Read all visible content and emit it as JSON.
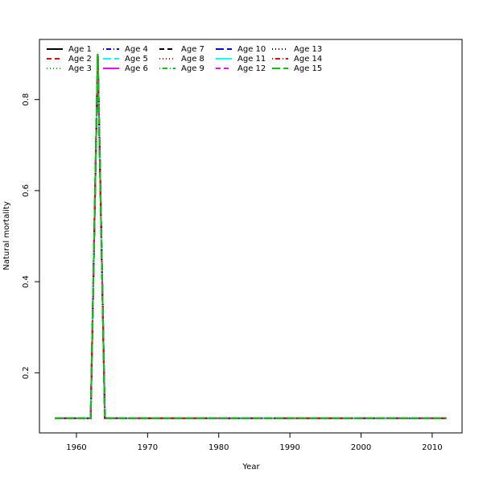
{
  "chart_data": {
    "type": "line",
    "x_label": "Year",
    "y_label": "Natural mortality",
    "x": [
      1957,
      1958,
      1959,
      1960,
      1961,
      1962,
      1963,
      1964,
      1965,
      1966,
      1967,
      1968,
      1969,
      1970,
      1971,
      1972,
      1973,
      1974,
      1975,
      1976,
      1977,
      1978,
      1979,
      1980,
      1981,
      1982,
      1983,
      1984,
      1985,
      1986,
      1987,
      1988,
      1989,
      1990,
      1991,
      1992,
      1993,
      1994,
      1995,
      1996,
      1997,
      1998,
      1999,
      2000,
      2001,
      2002,
      2003,
      2004,
      2005,
      2006,
      2007,
      2008,
      2009,
      2010,
      2011,
      2012
    ],
    "xlim": [
      1954.8,
      2014.2
    ],
    "xticks": [
      1960,
      1970,
      1980,
      1990,
      2000,
      2010
    ],
    "ylim": [
      0.068,
      0.932
    ],
    "yticks": [
      0.2,
      0.4,
      0.6,
      0.8
    ],
    "legend": "top-left",
    "series": [
      {
        "name": "Age 1",
        "color": "#000000",
        "dash": "solid",
        "values": [
          0.1,
          0.1,
          0.1,
          0.1,
          0.1,
          0.1,
          0.9,
          0.1,
          0.1,
          0.1,
          0.1,
          0.1,
          0.1,
          0.1,
          0.1,
          0.1,
          0.1,
          0.1,
          0.1,
          0.1,
          0.1,
          0.1,
          0.1,
          0.1,
          0.1,
          0.1,
          0.1,
          0.1,
          0.1,
          0.1,
          0.1,
          0.1,
          0.1,
          0.1,
          0.1,
          0.1,
          0.1,
          0.1,
          0.1,
          0.1,
          0.1,
          0.1,
          0.1,
          0.1,
          0.1,
          0.1,
          0.1,
          0.1,
          0.1,
          0.1,
          0.1,
          0.1,
          0.1,
          0.1,
          0.1,
          0.1
        ]
      },
      {
        "name": "Age 2",
        "color": "#ff0000",
        "dash": "dashed",
        "values": [
          0.1,
          0.1,
          0.1,
          0.1,
          0.1,
          0.1,
          0.9,
          0.1,
          0.1,
          0.1,
          0.1,
          0.1,
          0.1,
          0.1,
          0.1,
          0.1,
          0.1,
          0.1,
          0.1,
          0.1,
          0.1,
          0.1,
          0.1,
          0.1,
          0.1,
          0.1,
          0.1,
          0.1,
          0.1,
          0.1,
          0.1,
          0.1,
          0.1,
          0.1,
          0.1,
          0.1,
          0.1,
          0.1,
          0.1,
          0.1,
          0.1,
          0.1,
          0.1,
          0.1,
          0.1,
          0.1,
          0.1,
          0.1,
          0.1,
          0.1,
          0.1,
          0.1,
          0.1,
          0.1,
          0.1,
          0.1
        ]
      },
      {
        "name": "Age 3",
        "color": "#00cd00",
        "dash": "dotted",
        "values": [
          0.1,
          0.1,
          0.1,
          0.1,
          0.1,
          0.1,
          0.9,
          0.1,
          0.1,
          0.1,
          0.1,
          0.1,
          0.1,
          0.1,
          0.1,
          0.1,
          0.1,
          0.1,
          0.1,
          0.1,
          0.1,
          0.1,
          0.1,
          0.1,
          0.1,
          0.1,
          0.1,
          0.1,
          0.1,
          0.1,
          0.1,
          0.1,
          0.1,
          0.1,
          0.1,
          0.1,
          0.1,
          0.1,
          0.1,
          0.1,
          0.1,
          0.1,
          0.1,
          0.1,
          0.1,
          0.1,
          0.1,
          0.1,
          0.1,
          0.1,
          0.1,
          0.1,
          0.1,
          0.1,
          0.1,
          0.1
        ]
      },
      {
        "name": "Age 4",
        "color": "#0000ff",
        "dash": "dotdash",
        "values": [
          0.1,
          0.1,
          0.1,
          0.1,
          0.1,
          0.1,
          0.9,
          0.1,
          0.1,
          0.1,
          0.1,
          0.1,
          0.1,
          0.1,
          0.1,
          0.1,
          0.1,
          0.1,
          0.1,
          0.1,
          0.1,
          0.1,
          0.1,
          0.1,
          0.1,
          0.1,
          0.1,
          0.1,
          0.1,
          0.1,
          0.1,
          0.1,
          0.1,
          0.1,
          0.1,
          0.1,
          0.1,
          0.1,
          0.1,
          0.1,
          0.1,
          0.1,
          0.1,
          0.1,
          0.1,
          0.1,
          0.1,
          0.1,
          0.1,
          0.1,
          0.1,
          0.1,
          0.1,
          0.1,
          0.1,
          0.1
        ]
      },
      {
        "name": "Age 5",
        "color": "#00ffff",
        "dash": "longdash",
        "values": [
          0.1,
          0.1,
          0.1,
          0.1,
          0.1,
          0.1,
          0.9,
          0.1,
          0.1,
          0.1,
          0.1,
          0.1,
          0.1,
          0.1,
          0.1,
          0.1,
          0.1,
          0.1,
          0.1,
          0.1,
          0.1,
          0.1,
          0.1,
          0.1,
          0.1,
          0.1,
          0.1,
          0.1,
          0.1,
          0.1,
          0.1,
          0.1,
          0.1,
          0.1,
          0.1,
          0.1,
          0.1,
          0.1,
          0.1,
          0.1,
          0.1,
          0.1,
          0.1,
          0.1,
          0.1,
          0.1,
          0.1,
          0.1,
          0.1,
          0.1,
          0.1,
          0.1,
          0.1,
          0.1,
          0.1,
          0.1
        ]
      },
      {
        "name": "Age 6",
        "color": "#ff00ff",
        "dash": "solid",
        "values": [
          0.1,
          0.1,
          0.1,
          0.1,
          0.1,
          0.1,
          0.9,
          0.1,
          0.1,
          0.1,
          0.1,
          0.1,
          0.1,
          0.1,
          0.1,
          0.1,
          0.1,
          0.1,
          0.1,
          0.1,
          0.1,
          0.1,
          0.1,
          0.1,
          0.1,
          0.1,
          0.1,
          0.1,
          0.1,
          0.1,
          0.1,
          0.1,
          0.1,
          0.1,
          0.1,
          0.1,
          0.1,
          0.1,
          0.1,
          0.1,
          0.1,
          0.1,
          0.1,
          0.1,
          0.1,
          0.1,
          0.1,
          0.1,
          0.1,
          0.1,
          0.1,
          0.1,
          0.1,
          0.1,
          0.1,
          0.1
        ]
      },
      {
        "name": "Age 7",
        "color": "#000000",
        "dash": "dashed",
        "values": [
          0.1,
          0.1,
          0.1,
          0.1,
          0.1,
          0.1,
          0.9,
          0.1,
          0.1,
          0.1,
          0.1,
          0.1,
          0.1,
          0.1,
          0.1,
          0.1,
          0.1,
          0.1,
          0.1,
          0.1,
          0.1,
          0.1,
          0.1,
          0.1,
          0.1,
          0.1,
          0.1,
          0.1,
          0.1,
          0.1,
          0.1,
          0.1,
          0.1,
          0.1,
          0.1,
          0.1,
          0.1,
          0.1,
          0.1,
          0.1,
          0.1,
          0.1,
          0.1,
          0.1,
          0.1,
          0.1,
          0.1,
          0.1,
          0.1,
          0.1,
          0.1,
          0.1,
          0.1,
          0.1,
          0.1,
          0.1
        ]
      },
      {
        "name": "Age 8",
        "color": "#ff0000",
        "dash": "dotted",
        "values": [
          0.1,
          0.1,
          0.1,
          0.1,
          0.1,
          0.1,
          0.9,
          0.1,
          0.1,
          0.1,
          0.1,
          0.1,
          0.1,
          0.1,
          0.1,
          0.1,
          0.1,
          0.1,
          0.1,
          0.1,
          0.1,
          0.1,
          0.1,
          0.1,
          0.1,
          0.1,
          0.1,
          0.1,
          0.1,
          0.1,
          0.1,
          0.1,
          0.1,
          0.1,
          0.1,
          0.1,
          0.1,
          0.1,
          0.1,
          0.1,
          0.1,
          0.1,
          0.1,
          0.1,
          0.1,
          0.1,
          0.1,
          0.1,
          0.1,
          0.1,
          0.1,
          0.1,
          0.1,
          0.1,
          0.1,
          0.1
        ]
      },
      {
        "name": "Age 9",
        "color": "#00cd00",
        "dash": "dotdash",
        "values": [
          0.1,
          0.1,
          0.1,
          0.1,
          0.1,
          0.1,
          0.9,
          0.1,
          0.1,
          0.1,
          0.1,
          0.1,
          0.1,
          0.1,
          0.1,
          0.1,
          0.1,
          0.1,
          0.1,
          0.1,
          0.1,
          0.1,
          0.1,
          0.1,
          0.1,
          0.1,
          0.1,
          0.1,
          0.1,
          0.1,
          0.1,
          0.1,
          0.1,
          0.1,
          0.1,
          0.1,
          0.1,
          0.1,
          0.1,
          0.1,
          0.1,
          0.1,
          0.1,
          0.1,
          0.1,
          0.1,
          0.1,
          0.1,
          0.1,
          0.1,
          0.1,
          0.1,
          0.1,
          0.1,
          0.1,
          0.1
        ]
      },
      {
        "name": "Age 10",
        "color": "#0000ff",
        "dash": "longdash",
        "values": [
          0.1,
          0.1,
          0.1,
          0.1,
          0.1,
          0.1,
          0.9,
          0.1,
          0.1,
          0.1,
          0.1,
          0.1,
          0.1,
          0.1,
          0.1,
          0.1,
          0.1,
          0.1,
          0.1,
          0.1,
          0.1,
          0.1,
          0.1,
          0.1,
          0.1,
          0.1,
          0.1,
          0.1,
          0.1,
          0.1,
          0.1,
          0.1,
          0.1,
          0.1,
          0.1,
          0.1,
          0.1,
          0.1,
          0.1,
          0.1,
          0.1,
          0.1,
          0.1,
          0.1,
          0.1,
          0.1,
          0.1,
          0.1,
          0.1,
          0.1,
          0.1,
          0.1,
          0.1,
          0.1,
          0.1,
          0.1
        ]
      },
      {
        "name": "Age 11",
        "color": "#00ffff",
        "dash": "solid",
        "values": [
          0.1,
          0.1,
          0.1,
          0.1,
          0.1,
          0.1,
          0.9,
          0.1,
          0.1,
          0.1,
          0.1,
          0.1,
          0.1,
          0.1,
          0.1,
          0.1,
          0.1,
          0.1,
          0.1,
          0.1,
          0.1,
          0.1,
          0.1,
          0.1,
          0.1,
          0.1,
          0.1,
          0.1,
          0.1,
          0.1,
          0.1,
          0.1,
          0.1,
          0.1,
          0.1,
          0.1,
          0.1,
          0.1,
          0.1,
          0.1,
          0.1,
          0.1,
          0.1,
          0.1,
          0.1,
          0.1,
          0.1,
          0.1,
          0.1,
          0.1,
          0.1,
          0.1,
          0.1,
          0.1,
          0.1,
          0.1
        ]
      },
      {
        "name": "Age 12",
        "color": "#ff00ff",
        "dash": "dashed",
        "values": [
          0.1,
          0.1,
          0.1,
          0.1,
          0.1,
          0.1,
          0.9,
          0.1,
          0.1,
          0.1,
          0.1,
          0.1,
          0.1,
          0.1,
          0.1,
          0.1,
          0.1,
          0.1,
          0.1,
          0.1,
          0.1,
          0.1,
          0.1,
          0.1,
          0.1,
          0.1,
          0.1,
          0.1,
          0.1,
          0.1,
          0.1,
          0.1,
          0.1,
          0.1,
          0.1,
          0.1,
          0.1,
          0.1,
          0.1,
          0.1,
          0.1,
          0.1,
          0.1,
          0.1,
          0.1,
          0.1,
          0.1,
          0.1,
          0.1,
          0.1,
          0.1,
          0.1,
          0.1,
          0.1,
          0.1,
          0.1
        ]
      },
      {
        "name": "Age 13",
        "color": "#000000",
        "dash": "dotted",
        "values": [
          0.1,
          0.1,
          0.1,
          0.1,
          0.1,
          0.1,
          0.9,
          0.1,
          0.1,
          0.1,
          0.1,
          0.1,
          0.1,
          0.1,
          0.1,
          0.1,
          0.1,
          0.1,
          0.1,
          0.1,
          0.1,
          0.1,
          0.1,
          0.1,
          0.1,
          0.1,
          0.1,
          0.1,
          0.1,
          0.1,
          0.1,
          0.1,
          0.1,
          0.1,
          0.1,
          0.1,
          0.1,
          0.1,
          0.1,
          0.1,
          0.1,
          0.1,
          0.1,
          0.1,
          0.1,
          0.1,
          0.1,
          0.1,
          0.1,
          0.1,
          0.1,
          0.1,
          0.1,
          0.1,
          0.1,
          0.1
        ]
      },
      {
        "name": "Age 14",
        "color": "#ff0000",
        "dash": "dotdash",
        "values": [
          0.1,
          0.1,
          0.1,
          0.1,
          0.1,
          0.1,
          0.9,
          0.1,
          0.1,
          0.1,
          0.1,
          0.1,
          0.1,
          0.1,
          0.1,
          0.1,
          0.1,
          0.1,
          0.1,
          0.1,
          0.1,
          0.1,
          0.1,
          0.1,
          0.1,
          0.1,
          0.1,
          0.1,
          0.1,
          0.1,
          0.1,
          0.1,
          0.1,
          0.1,
          0.1,
          0.1,
          0.1,
          0.1,
          0.1,
          0.1,
          0.1,
          0.1,
          0.1,
          0.1,
          0.1,
          0.1,
          0.1,
          0.1,
          0.1,
          0.1,
          0.1,
          0.1,
          0.1,
          0.1,
          0.1,
          0.1
        ]
      },
      {
        "name": "Age 15",
        "color": "#00cd00",
        "dash": "longdash",
        "values": [
          0.1,
          0.1,
          0.1,
          0.1,
          0.1,
          0.1,
          0.9,
          0.1,
          0.1,
          0.1,
          0.1,
          0.1,
          0.1,
          0.1,
          0.1,
          0.1,
          0.1,
          0.1,
          0.1,
          0.1,
          0.1,
          0.1,
          0.1,
          0.1,
          0.1,
          0.1,
          0.1,
          0.1,
          0.1,
          0.1,
          0.1,
          0.1,
          0.1,
          0.1,
          0.1,
          0.1,
          0.1,
          0.1,
          0.1,
          0.1,
          0.1,
          0.1,
          0.1,
          0.1,
          0.1,
          0.1,
          0.1,
          0.1,
          0.1,
          0.1,
          0.1,
          0.1,
          0.1,
          0.1,
          0.1,
          0.1
        ]
      }
    ]
  }
}
